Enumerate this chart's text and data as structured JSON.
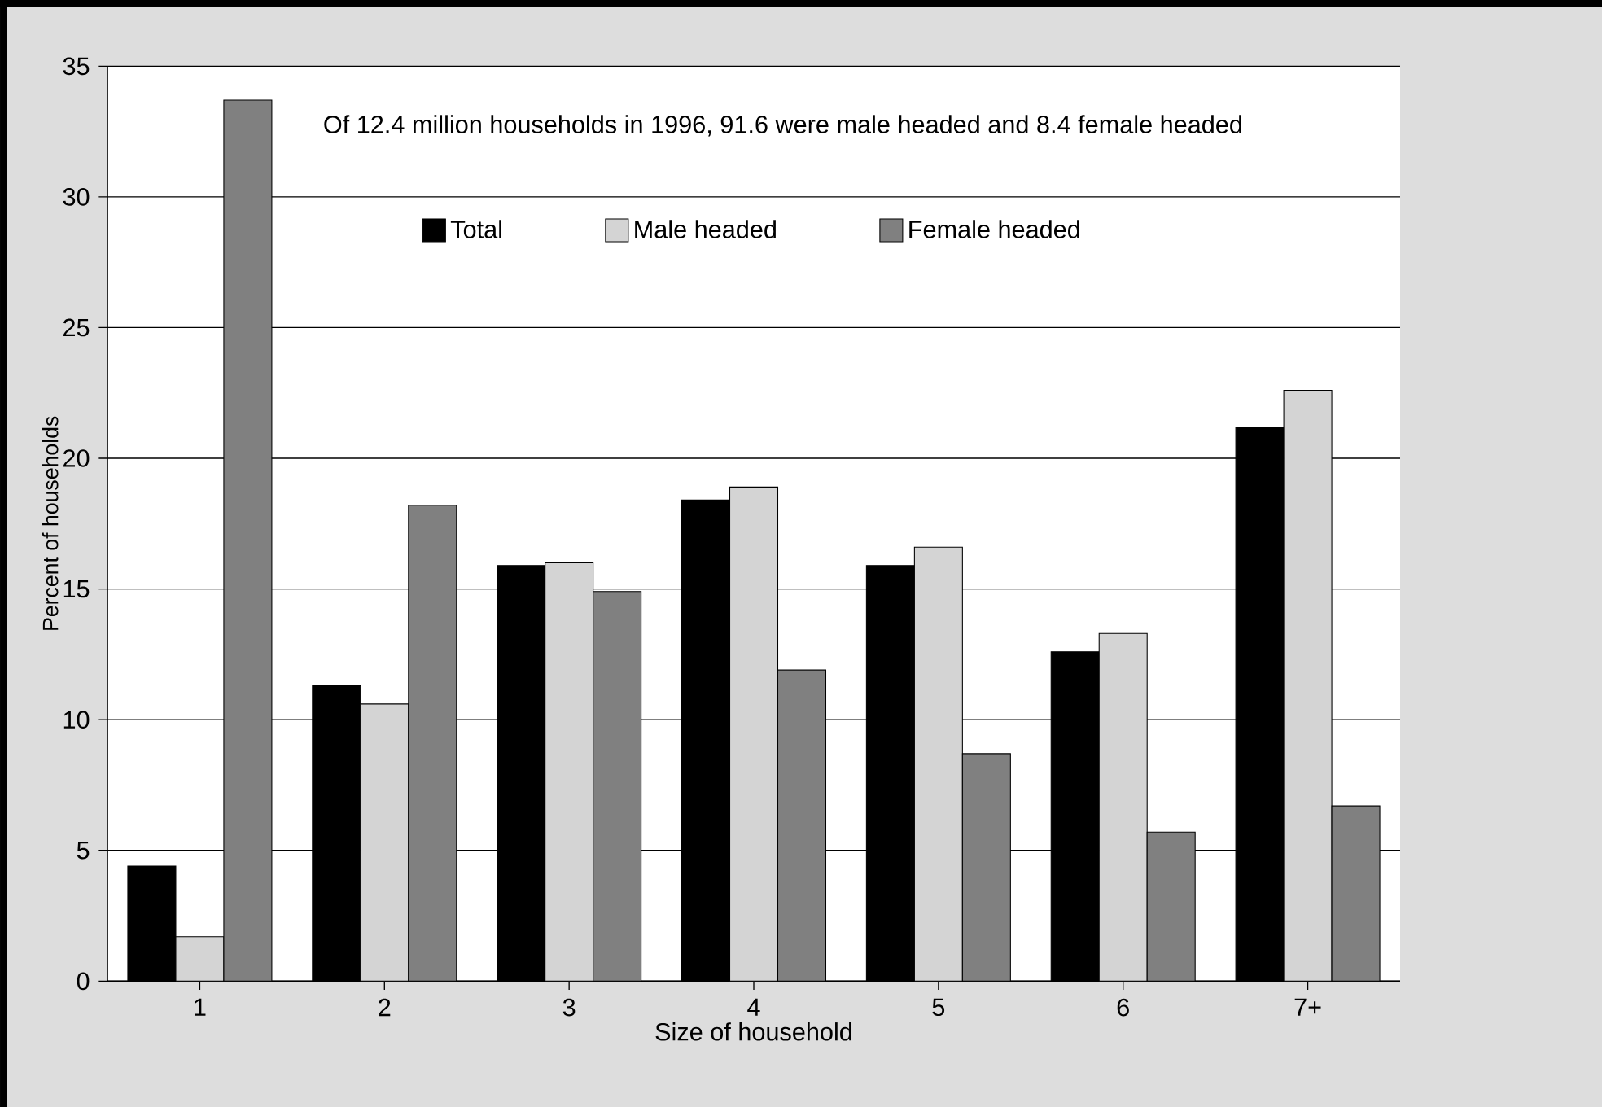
{
  "chart_data": {
    "type": "bar",
    "categories": [
      "1",
      "2",
      "3",
      "4",
      "5",
      "6",
      "7+"
    ],
    "series": [
      {
        "name": "Total",
        "color": "#000000",
        "values": [
          4.4,
          11.3,
          15.9,
          18.4,
          15.9,
          12.6,
          21.2
        ]
      },
      {
        "name": "Male headed",
        "color": "#d4d4d4",
        "values": [
          1.7,
          10.6,
          16.0,
          18.9,
          16.6,
          13.3,
          22.6
        ]
      },
      {
        "name": "Female headed",
        "color": "#808080",
        "values": [
          33.7,
          18.2,
          14.9,
          11.9,
          8.7,
          5.7,
          6.7
        ]
      }
    ],
    "ylim": [
      0,
      35
    ],
    "yticks": [
      0,
      5,
      10,
      15,
      20,
      25,
      30,
      35
    ],
    "xlabel": "Size of household",
    "ylabel": "Percent of households",
    "annotations": [
      "Of 12.4 million households in 1996, 91.6 were male headed and 8.4 female headed"
    ],
    "legend": "top",
    "grid": "y"
  }
}
